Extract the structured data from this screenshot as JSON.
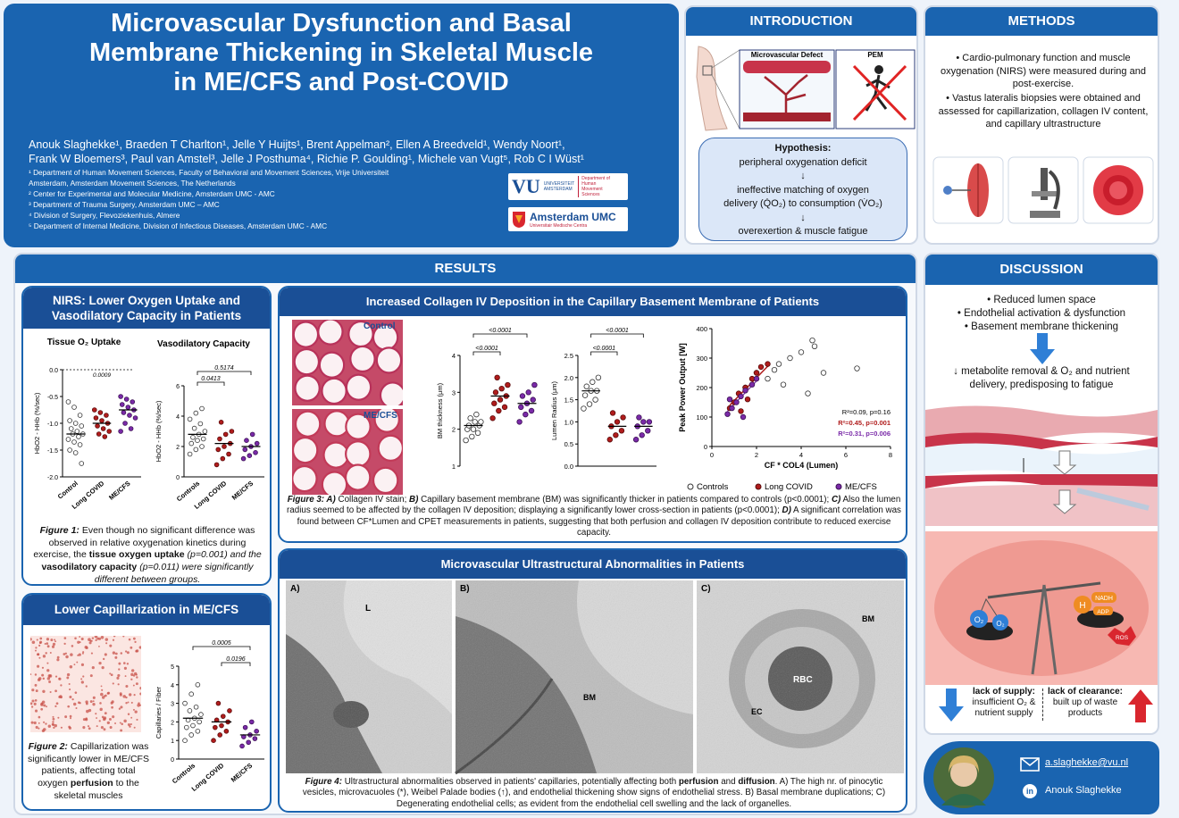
{
  "title": {
    "line1": "Microvascular Dysfunction and Basal",
    "line2": "Membrane Thickening in Skeletal Muscle",
    "line3": "in ME/CFS and Post-COVID"
  },
  "authors": {
    "line1": "Anouk Slaghekke¹, Braeden T Charlton¹, Jelle Y Huijts¹, Brent Appelman², Ellen A Breedveld¹, Wendy Noort¹,",
    "line2": "Frank W Bloemers³, Paul van Amstel³, Jelle J Posthuma⁴, Richie P. Goulding¹, Michele van Vugt⁵, Rob C I Wüst¹"
  },
  "affiliations": [
    "¹ Department of Human Movement Sciences, Faculty of Behavioral and Movement Sciences, Vrije Universiteit",
    "Amsterdam, Amsterdam Movement Sciences, The Netherlands",
    "² Center for Experimental and Molecular Medicine, Amsterdam UMC - AMC",
    "³ Department of Trauma Surgery, Amsterdam UMC – AMC",
    "⁴ Division of Surgery, Flevoziekenhuis, Almere",
    "⁵ Department of Internal Medicine, Division of Infectious Diseases, Amsterdam UMC - AMC"
  ],
  "logos": {
    "vu": "VU",
    "vu_small1": "UNIVERSITEIT",
    "vu_small2": "AMSTERDAM",
    "vu_dept": "Department of Human Movement Sciences",
    "amsterdam_umc": "Amsterdam UMC",
    "amsterdam_umc_sub": "Universitair Medische Centra"
  },
  "introduction": {
    "header": "INTRODUCTION",
    "diagram_label1": "Microvascular Defect",
    "diagram_label2": "PEM",
    "hypothesis_title": "Hypothesis:",
    "hyp_line1": "peripheral oxygenation deficit",
    "arrow": "↓",
    "hyp_line2": "ineffective matching of oxygen",
    "hyp_line3": "delivery (Q̇O₂) to consumption (V̇O₂)",
    "hyp_line4": "overexertion & muscle fatigue"
  },
  "methods": {
    "header": "METHODS",
    "bullet1": "• Cardio-pulmonary function and muscle oxygenation (NIRS) were measured during and post-exercise.",
    "bullet2": "• Vastus lateralis biopsies were obtained and assessed for capillarization, collagen IV content, and capillary ultrastructure"
  },
  "results": {
    "header": "RESULTS",
    "nirs": {
      "header1": "NIRS: Lower Oxygen Uptake and",
      "header2": "Vasodilatory Capacity in Patients",
      "caption_a": "Figure 1:",
      "caption_b": " Even though no significant difference was observed in relative oxygenation kinetics during exercise, the ",
      "caption_c": "tissue oxygen uptake",
      "caption_d": " (p=0.001) and the ",
      "caption_e": "vasodilatory capacity",
      "caption_f": " (p=0.011) were significantly different between groups."
    },
    "capillarization": {
      "header": "Lower Capillarization in ME/CFS",
      "caption_a": "Figure 2:",
      "caption_b": " Capillarization was significantly lower in ME/CFS patients, affecting total oxygen ",
      "caption_c": "perfusion",
      "caption_d": " to the skeletal muscles"
    },
    "collagen": {
      "header": "Increased Collagen IV Deposition in the Capillary Basement Membrane of Patients",
      "stain_control": "Control",
      "stain_mecfs": "ME/CFS",
      "caption_a": "Figure 3: A)",
      "caption_b": " Collagen IV stain; ",
      "caption_c": "B)",
      "caption_d": " Capillary basement membrane (BM) was significantly thicker in patients compared to controls (p<0.0001); ",
      "caption_e": "C)",
      "caption_f": " Also the lumen radius seemed to be affected by the collagen IV deposition; displaying a significantly lower cross-section in patients (p<0.0001); ",
      "caption_g": "D)",
      "caption_h": " A significant correlation was found between CF*Lumen and CPET measurements in patients, suggesting that both perfusion and collagen IV deposition contribute to reduced exercise capacity."
    },
    "ultra": {
      "header": "Microvascular Ultrastructural Abnormalities in Patients",
      "label_a": "A)",
      "label_b": "B)",
      "label_c": "C)",
      "em_L": "L",
      "em_BM": "BM",
      "em_BM2": "BM",
      "em_RBC": "RBC",
      "em_EC": "EC",
      "caption_a": "Figure 4:",
      "caption_b": " Ultrastructural abnormalities observed in patients' capillaries, potentially affecting both ",
      "caption_c": "perfusion",
      "caption_d": " and ",
      "caption_e": "diffusion",
      "caption_f": ". A) The high nr. of pinocytic vesicles, microvacuoles (*), Weibel Palade bodies (↑), and endothelial thickening show signs of endothelial stress. B) Basal membrane duplications; C) Degenerating endothelial cells; as evident from the endothelial cell swelling and the lack of organelles."
    }
  },
  "discussion": {
    "header": "DISCUSSION",
    "bullet1": "• Reduced lumen space",
    "bullet2": "• Endothelial activation & dysfunction",
    "bullet3": "• Basement membrane thickening",
    "outcome": "↓ metabolite removal & O₂ and nutrient delivery, predisposing to fatigue",
    "supply_title": "lack of supply:",
    "supply_text": "insufficient O₂ & nutrient supply",
    "clearance_title": "lack of clearance:",
    "clearance_text": "built up of waste products",
    "scale_o2": "O₂",
    "scale_h": "H",
    "scale_nadh": "NADH",
    "scale_adp": "ADP",
    "scale_ros": "ROS"
  },
  "contact": {
    "email": "a.slaghekke@vu.nl",
    "linkedin": "Anouk Slaghekke",
    "in_glyph": "in"
  },
  "chart_data": [
    {
      "id": "fig1a",
      "type": "scatter",
      "title": "Tissue O₂ Uptake",
      "ylabel": "HbO2 - HHb (%/sec)",
      "categories": [
        "Control",
        "Long COVID",
        "ME/CFS"
      ],
      "ylim": [
        -2.0,
        0.0
      ],
      "yticks": [
        "0.0",
        "-0.5",
        "-1.0",
        "-1.5",
        "-2.0"
      ],
      "annotations": [
        "0.0009"
      ],
      "series": [
        {
          "values": [
            -0.6,
            -0.7,
            -0.85,
            -0.95,
            -1.0,
            -1.05,
            -1.1,
            -1.15,
            -1.2,
            -1.2,
            -1.25,
            -1.3,
            -1.35,
            -1.4,
            -1.5,
            -1.55,
            -1.75
          ]
        },
        {
          "values": [
            -0.75,
            -0.8,
            -0.85,
            -0.9,
            -0.95,
            -1.0,
            -1.05,
            -1.1,
            -1.15,
            -1.2,
            -1.25
          ]
        },
        {
          "values": [
            -0.5,
            -0.55,
            -0.6,
            -0.65,
            -0.7,
            -0.75,
            -0.8,
            -0.85,
            -0.9,
            -1.0,
            -1.1,
            -1.15
          ]
        }
      ]
    },
    {
      "id": "fig1b",
      "type": "scatter",
      "title": "Vasodilatory Capacity",
      "ylabel": "HbO2 - HHb (%/sec)",
      "categories": [
        "Controls",
        "Long COVID",
        "ME/CFS"
      ],
      "ylim": [
        0,
        6
      ],
      "yticks": [
        "0",
        "2",
        "4",
        "6"
      ],
      "annotations": [
        "0.0413",
        "0.5174"
      ],
      "series": [
        {
          "values": [
            1.5,
            1.8,
            2.0,
            2.2,
            2.4,
            2.5,
            2.6,
            2.8,
            3.0,
            3.2,
            3.5,
            3.8,
            4.2,
            4.5
          ]
        },
        {
          "values": [
            0.8,
            1.2,
            1.5,
            1.8,
            2.0,
            2.2,
            2.5,
            2.8,
            3.0,
            3.6
          ]
        },
        {
          "values": [
            1.2,
            1.4,
            1.6,
            1.8,
            2.0,
            2.2,
            2.4,
            2.8
          ]
        }
      ]
    },
    {
      "id": "fig2",
      "type": "scatter",
      "ylabel": "Capillaries / Fiber",
      "categories": [
        "Controls",
        "Long COVID",
        "ME/CFS"
      ],
      "ylim": [
        0,
        5
      ],
      "yticks": [
        "0",
        "1",
        "2",
        "3",
        "4",
        "5"
      ],
      "annotations": [
        "0.0005",
        "0.0196"
      ],
      "series": [
        {
          "values": [
            1.0,
            1.3,
            1.5,
            1.7,
            1.8,
            2.0,
            2.1,
            2.2,
            2.4,
            2.6,
            2.8,
            3.0,
            3.5,
            4.0
          ]
        },
        {
          "values": [
            1.0,
            1.3,
            1.5,
            1.7,
            1.8,
            2.0,
            2.1,
            2.3,
            2.6,
            3.0
          ]
        },
        {
          "values": [
            0.7,
            0.9,
            1.1,
            1.2,
            1.3,
            1.5,
            1.7,
            2.0
          ]
        }
      ]
    },
    {
      "id": "fig3b",
      "type": "scatter",
      "ylabel": "BM thickness (μm)",
      "ylim": [
        1,
        4
      ],
      "yticks": [
        "1",
        "2",
        "3",
        "4"
      ],
      "annotations": [
        "<0.0001",
        "<0.0001"
      ],
      "series": [
        {
          "values": [
            1.7,
            1.8,
            1.9,
            2.0,
            2.0,
            2.1,
            2.1,
            2.2,
            2.2,
            2.3,
            2.4
          ]
        },
        {
          "values": [
            2.3,
            2.5,
            2.6,
            2.7,
            2.8,
            2.9,
            3.0,
            3.1,
            3.2,
            3.4
          ]
        },
        {
          "values": [
            2.2,
            2.4,
            2.5,
            2.6,
            2.7,
            2.8,
            2.9,
            3.0,
            3.2
          ]
        }
      ]
    },
    {
      "id": "fig3c",
      "type": "scatter",
      "ylabel": "Lumen Radius (μm)",
      "ylim": [
        0.0,
        2.5
      ],
      "yticks": [
        "0.0",
        "0.5",
        "1.0",
        "1.5",
        "2.0",
        "2.5"
      ],
      "annotations": [
        "<0.0001",
        "<0.0001"
      ],
      "series": [
        {
          "values": [
            1.3,
            1.4,
            1.5,
            1.6,
            1.7,
            1.7,
            1.8,
            1.9,
            2.0
          ]
        },
        {
          "values": [
            0.6,
            0.7,
            0.8,
            0.9,
            1.0,
            1.1,
            1.2
          ]
        },
        {
          "values": [
            0.6,
            0.7,
            0.8,
            0.9,
            1.0,
            1.0,
            1.1
          ]
        }
      ]
    },
    {
      "id": "fig3d",
      "type": "scatter",
      "xlabel": "CF * COL4 (Lumen)",
      "ylabel": "Peak Power Output [W]",
      "xlim": [
        0,
        8
      ],
      "ylim": [
        0,
        400
      ],
      "xticks": [
        "0",
        "2",
        "4",
        "6",
        "8"
      ],
      "yticks": [
        "0",
        "100",
        "200",
        "300",
        "400"
      ],
      "stats": [
        "R²=0.09, p=0.16",
        "R²=0.45, p=0.001",
        "R²=0.31, p=0.006"
      ],
      "series": [
        {
          "name": "Controls",
          "points": [
            [
              1.5,
              200
            ],
            [
              2.0,
              250
            ],
            [
              2.5,
              230
            ],
            [
              3.0,
              280
            ],
            [
              3.5,
              300
            ],
            [
              4.0,
              320
            ],
            [
              4.5,
              360
            ],
            [
              4.3,
              180
            ],
            [
              5.0,
              250
            ],
            [
              6.5,
              265
            ],
            [
              3.2,
              210
            ],
            [
              2.8,
              260
            ],
            [
              4.6,
              340
            ]
          ]
        },
        {
          "name": "Long COVID",
          "points": [
            [
              0.8,
              130
            ],
            [
              1.0,
              150
            ],
            [
              1.2,
              180
            ],
            [
              1.5,
              200
            ],
            [
              1.8,
              230
            ],
            [
              2.0,
              250
            ],
            [
              2.2,
              270
            ],
            [
              2.5,
              280
            ],
            [
              1.3,
              120
            ],
            [
              1.6,
              160
            ]
          ]
        },
        {
          "name": "ME/CFS",
          "points": [
            [
              0.7,
              110
            ],
            [
              0.9,
              130
            ],
            [
              1.1,
              150
            ],
            [
              1.3,
              170
            ],
            [
              1.5,
              190
            ],
            [
              1.8,
              210
            ],
            [
              2.0,
              230
            ],
            [
              1.4,
              100
            ],
            [
              0.8,
              160
            ]
          ]
        }
      ]
    }
  ]
}
